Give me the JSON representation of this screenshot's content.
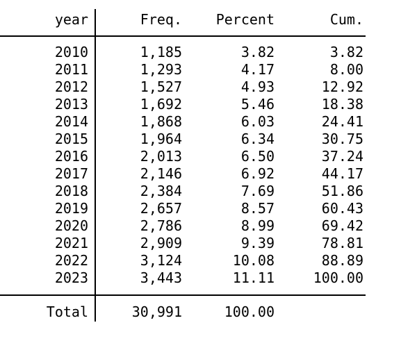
{
  "app": {
    "description": "Stata one-way tabulation results for variable year"
  },
  "colors": {
    "text": "#000000",
    "background": "#ffffff",
    "rule": "#000000"
  },
  "table": {
    "header": {
      "var": "year",
      "freq": "Freq.",
      "percent": "Percent",
      "cum": "Cum."
    },
    "rows": [
      {
        "year": "2010",
        "freq": "1,185",
        "percent": "3.82",
        "cum": "3.82"
      },
      {
        "year": "2011",
        "freq": "1,293",
        "percent": "4.17",
        "cum": "8.00"
      },
      {
        "year": "2012",
        "freq": "1,527",
        "percent": "4.93",
        "cum": "12.92"
      },
      {
        "year": "2013",
        "freq": "1,692",
        "percent": "5.46",
        "cum": "18.38"
      },
      {
        "year": "2014",
        "freq": "1,868",
        "percent": "6.03",
        "cum": "24.41"
      },
      {
        "year": "2015",
        "freq": "1,964",
        "percent": "6.34",
        "cum": "30.75"
      },
      {
        "year": "2016",
        "freq": "2,013",
        "percent": "6.50",
        "cum": "37.24"
      },
      {
        "year": "2017",
        "freq": "2,146",
        "percent": "6.92",
        "cum": "44.17"
      },
      {
        "year": "2018",
        "freq": "2,384",
        "percent": "7.69",
        "cum": "51.86"
      },
      {
        "year": "2019",
        "freq": "2,657",
        "percent": "8.57",
        "cum": "60.43"
      },
      {
        "year": "2020",
        "freq": "2,786",
        "percent": "8.99",
        "cum": "69.42"
      },
      {
        "year": "2021",
        "freq": "2,909",
        "percent": "9.39",
        "cum": "78.81"
      },
      {
        "year": "2022",
        "freq": "3,124",
        "percent": "10.08",
        "cum": "88.89"
      },
      {
        "year": "2023",
        "freq": "3,443",
        "percent": "11.11",
        "cum": "100.00"
      }
    ],
    "total": {
      "label": "Total",
      "freq": "30,991",
      "percent": "100.00",
      "cum": ""
    }
  }
}
